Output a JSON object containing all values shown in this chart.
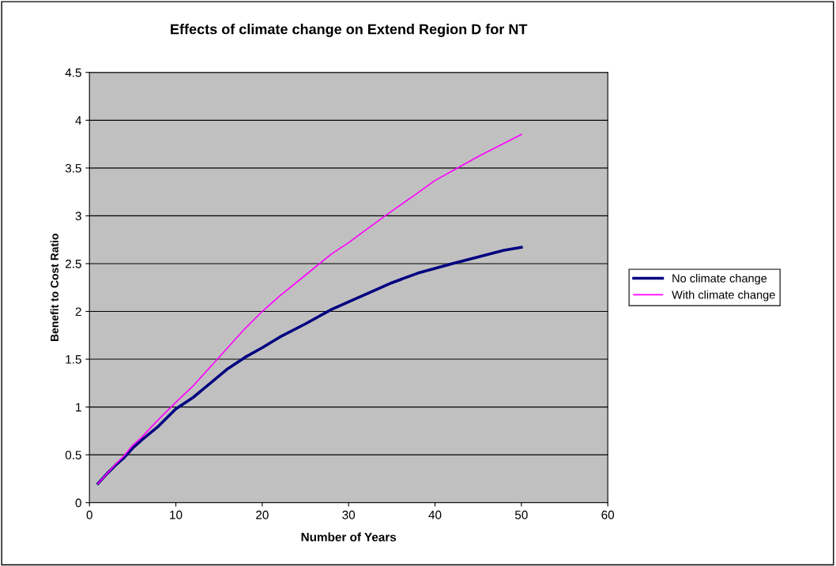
{
  "chart_data": {
    "type": "line",
    "title": "Effects of climate change on Extend Region D for NT",
    "xlabel": "Number of Years",
    "ylabel": "Benefit to Cost Ratio",
    "x": [
      1,
      2,
      3,
      4,
      5,
      6,
      8,
      10,
      12,
      14,
      16,
      18,
      20,
      22,
      25,
      28,
      30,
      33,
      35,
      38,
      40,
      42,
      45,
      48,
      50
    ],
    "series": [
      {
        "name": "No climate change",
        "color": "#000080",
        "values": [
          0.2,
          0.3,
          0.39,
          0.47,
          0.57,
          0.65,
          0.8,
          0.98,
          1.1,
          1.25,
          1.4,
          1.52,
          1.62,
          1.73,
          1.87,
          2.02,
          2.1,
          2.22,
          2.3,
          2.4,
          2.45,
          2.5,
          2.57,
          2.64,
          2.67
        ]
      },
      {
        "name": "With climate change",
        "color": "#ff00ff",
        "values": [
          0.2,
          0.3,
          0.4,
          0.49,
          0.6,
          0.68,
          0.87,
          1.05,
          1.22,
          1.42,
          1.62,
          1.82,
          2.0,
          2.16,
          2.38,
          2.6,
          2.72,
          2.92,
          3.05,
          3.24,
          3.37,
          3.47,
          3.62,
          3.76,
          3.85
        ]
      }
    ],
    "xlim": [
      0,
      60
    ],
    "xticks": [
      0,
      10,
      20,
      30,
      40,
      50,
      60
    ],
    "ylim": [
      0,
      4.5
    ],
    "yticks": [
      0,
      0.5,
      1,
      1.5,
      2,
      2.5,
      3,
      3.5,
      4,
      4.5
    ],
    "grid": "y",
    "legend": "right",
    "marker": "none",
    "line_style": "solid"
  }
}
